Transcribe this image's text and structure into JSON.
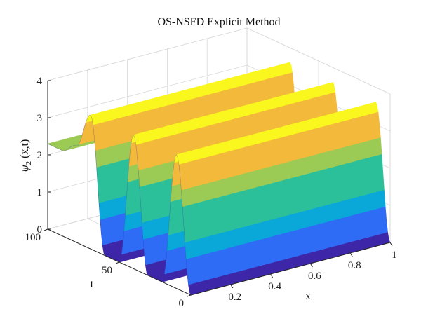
{
  "chart_data": {
    "type": "surface",
    "title": "OS-NSFD Explicit Method",
    "xlabel": "x",
    "ylabel": "t",
    "zlabel_main": "ψ",
    "zlabel_sub": "2",
    "zlabel_rest": "(x,t)",
    "xlim": [
      0,
      1
    ],
    "ylim": [
      0,
      100
    ],
    "zlim": [
      0,
      4
    ],
    "x_ticks": [
      "0.2",
      "0.4",
      "0.6",
      "0.8",
      "1"
    ],
    "x_tick_values": [
      0.2,
      0.4,
      0.6,
      0.8,
      1
    ],
    "y_ticks": [
      "0",
      "50",
      "100"
    ],
    "y_tick_values": [
      0,
      50,
      100
    ],
    "z_ticks": [
      "0",
      "1",
      "2",
      "3",
      "4"
    ],
    "z_tick_values": [
      0,
      1,
      2,
      3,
      4
    ],
    "grid": true,
    "colormap": "parula",
    "colormap_colors": [
      "#3e26a8",
      "#2f6cf5",
      "#0aa7d9",
      "#2cc09a",
      "#9ccb55",
      "#f3b93a",
      "#f9f71e"
    ],
    "surface_profile": {
      "description_of_t": "surface value along t at t = 0, 10, ..., 100",
      "t": [
        0,
        10,
        20,
        30,
        40,
        50,
        60,
        70,
        80,
        90,
        100
      ],
      "psi": [
        0,
        3.6,
        0,
        0,
        3.6,
        0,
        0,
        3.6,
        2.6,
        2.3,
        2.3
      ]
    }
  }
}
